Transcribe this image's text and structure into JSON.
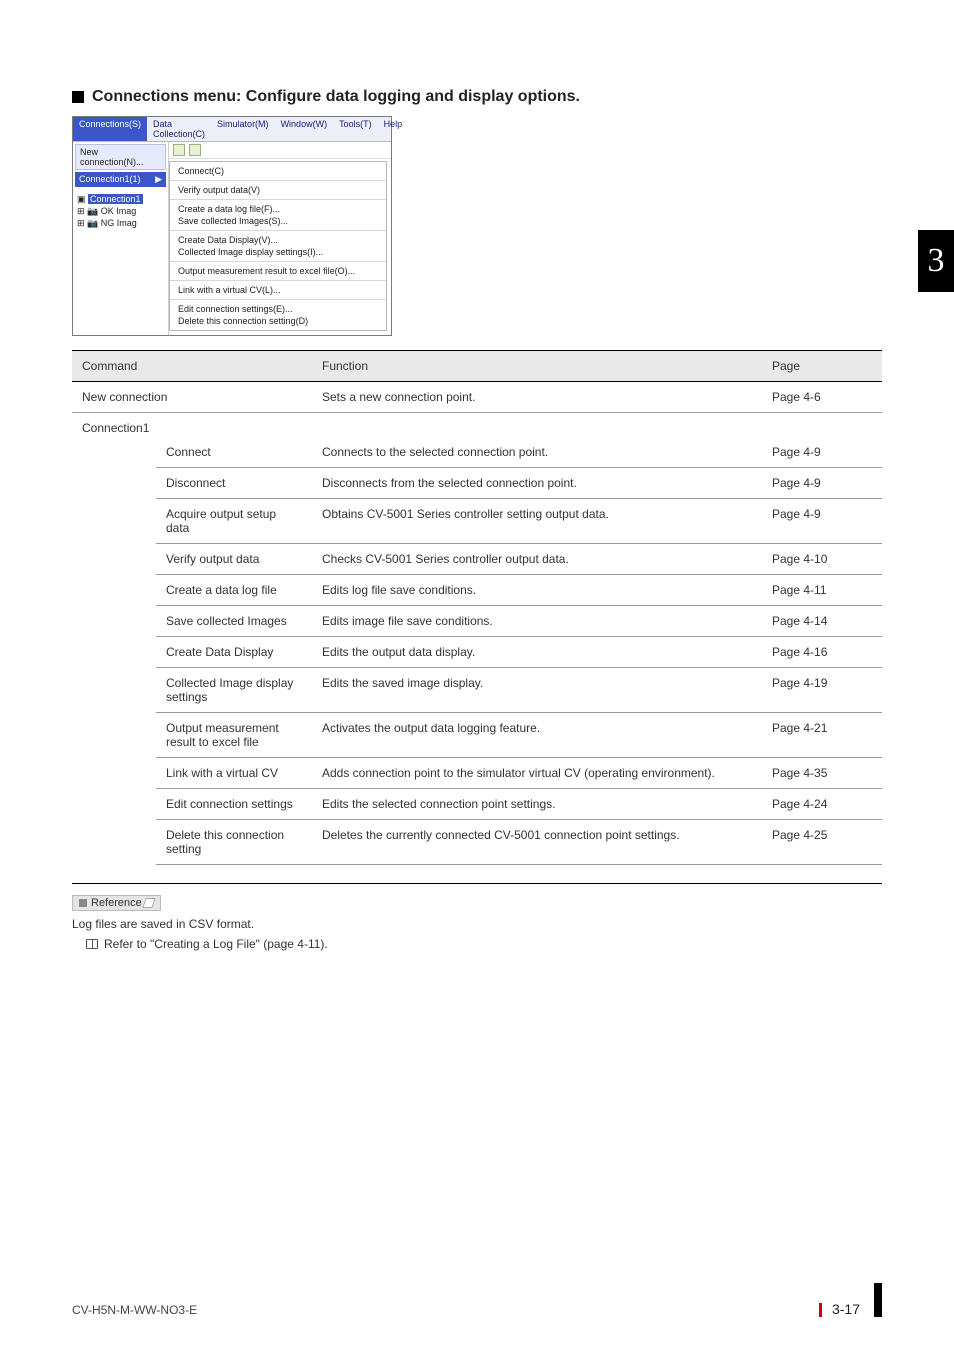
{
  "heading": "Connections menu: Configure data logging and display options.",
  "screenshot": {
    "menubar": [
      "Connections(S)",
      "Data Collection(C)",
      "Simulator(M)",
      "Window(W)",
      "Tools(T)",
      "Help"
    ],
    "menubar_active_index": 0,
    "left": {
      "dropdown": "New connection(N)...",
      "selected_row": "Connection1(1)",
      "tree_sel": "Connection1",
      "tree_items": [
        "OK Imag",
        "NG Imag"
      ]
    },
    "submenu_groups": [
      [
        "Connect(C)"
      ],
      [
        "Verify output data(V)"
      ],
      [
        "Create a data log file(F)...",
        "Save collected Images(S)..."
      ],
      [
        "Create Data Display(V)...",
        "Collected Image display settings(I)..."
      ],
      [
        "Output measurement result to excel file(O)..."
      ],
      [
        "Link with a virtual CV(L)..."
      ],
      [
        "Edit connection settings(E)...",
        "Delete this connection setting(D)"
      ]
    ]
  },
  "table": {
    "headers": {
      "command": "Command",
      "function": "Function",
      "page": "Page"
    },
    "top_row": {
      "command": "New connection",
      "function": "Sets a new connection point.",
      "page": "Page 4-6"
    },
    "group_label": "Connection1",
    "rows": [
      {
        "command": "Connect",
        "function": "Connects to the selected connection point.",
        "page": "Page 4-9"
      },
      {
        "command": "Disconnect",
        "function": "Disconnects from the selected connection point.",
        "page": "Page 4-9"
      },
      {
        "command": "Acquire output setup data",
        "function": "Obtains CV-5001 Series controller setting output data.",
        "page": "Page 4-9"
      },
      {
        "command": "Verify output data",
        "function": "Checks CV-5001 Series controller output data.",
        "page": "Page 4-10"
      },
      {
        "command": "Create a data log file",
        "function": "Edits log file save conditions.",
        "page": "Page 4-11"
      },
      {
        "command": "Save collected Images",
        "function": "Edits image file save conditions.",
        "page": "Page 4-14"
      },
      {
        "command": "Create Data Display",
        "function": "Edits the output data display.",
        "page": "Page 4-16"
      },
      {
        "command": "Collected Image display settings",
        "function": "Edits the saved image display.",
        "page": "Page 4-19"
      },
      {
        "command": "Output measurement result to excel file",
        "function": "Activates the output data logging feature.",
        "page": "Page 4-21"
      },
      {
        "command": "Link with a virtual CV",
        "function": "Adds connection point to the simulator virtual CV (operating environment).",
        "page": "Page 4-35"
      },
      {
        "command": "Edit connection settings",
        "function": "Edits the selected connection point settings.",
        "page": "Page 4-24"
      },
      {
        "command": "Delete this connection setting",
        "function": "Deletes the currently connected CV-5001 connection point settings.",
        "page": "Page 4-25"
      }
    ]
  },
  "reference": {
    "tag": "Reference",
    "line1": "Log files are saved in CSV format.",
    "line2": "Refer to \"Creating a Log File\" (page 4-11)."
  },
  "side_tab": "3",
  "footer": {
    "doc_code": "CV-H5N-M-WW-NO3-E",
    "page_number": "3-17"
  }
}
